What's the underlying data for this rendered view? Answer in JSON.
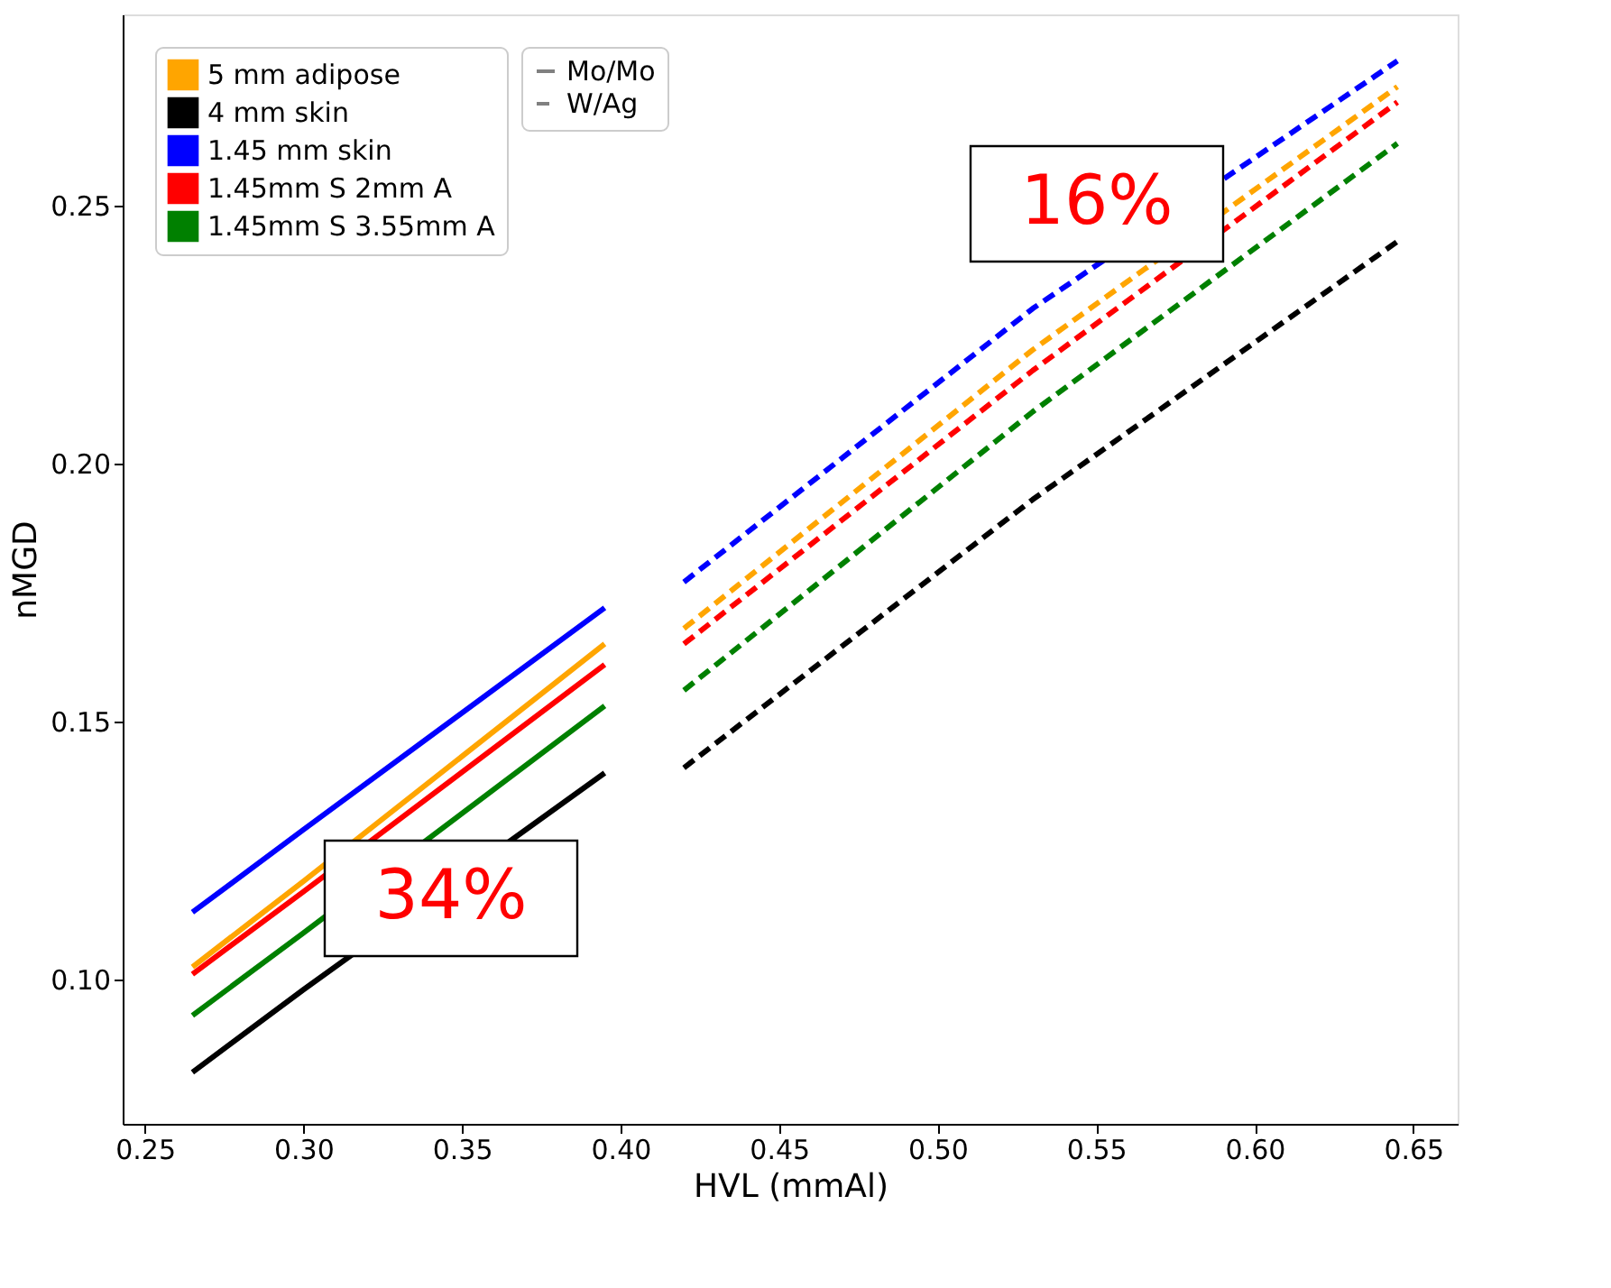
{
  "chart_data": {
    "type": "line",
    "xlabel": "HVL (mmAl)",
    "ylabel": "nMGD",
    "xlim": [
      0.243,
      0.664
    ],
    "ylim": [
      0.072,
      0.287
    ],
    "xticks": [
      0.25,
      {
        "value": 0.3,
        "label": "0.30"
      },
      0.35,
      {
        "value": 0.4,
        "label": "0.40"
      },
      0.45,
      {
        "value": 0.5,
        "label": "0.50"
      },
      0.55,
      {
        "value": 0.6,
        "label": "0.60"
      },
      0.65
    ],
    "yticks": [
      {
        "value": 0.1,
        "label": "0.10"
      },
      0.15,
      {
        "value": 0.2,
        "label": "0.20"
      },
      0.25
    ],
    "grid": false,
    "legend": "top left",
    "series": [
      {
        "name": "5 mm adipose",
        "color": "#ffa500",
        "line_style": "solid",
        "x": [
          0.265,
          0.3,
          0.395
        ],
        "values": [
          0.1024,
          0.119,
          0.165
        ]
      },
      {
        "name": "4 mm skin",
        "color": "#000000",
        "line_style": "solid",
        "x": [
          0.265,
          0.3,
          0.395
        ],
        "values": [
          0.082,
          0.098,
          0.14
        ]
      },
      {
        "name": "1.45 mm skin",
        "color": "#0000ff",
        "line_style": "solid",
        "x": [
          0.265,
          0.3,
          0.395
        ],
        "values": [
          0.113,
          0.129,
          0.172
        ]
      },
      {
        "name": "1.45mm S 2mm A",
        "color": "#ff0000",
        "line_style": "solid",
        "x": [
          0.265,
          0.3,
          0.395
        ],
        "values": [
          0.101,
          0.117,
          0.161
        ]
      },
      {
        "name": "1.45mm S 3.55mm A",
        "color": "#008000",
        "line_style": "solid",
        "x": [
          0.265,
          0.3,
          0.395
        ],
        "values": [
          0.093,
          0.109,
          0.153
        ]
      },
      {
        "color": "#ffa500",
        "line_style": "dashed",
        "x": [
          0.42,
          0.53,
          0.645
        ],
        "values": [
          0.168,
          0.222,
          0.273
        ]
      },
      {
        "color": "#000000",
        "line_style": "dashed",
        "x": [
          0.42,
          0.53,
          0.645
        ],
        "values": [
          0.141,
          0.193,
          0.243
        ]
      },
      {
        "color": "#0000ff",
        "line_style": "dashed",
        "x": [
          0.42,
          0.53,
          0.645
        ],
        "values": [
          0.177,
          0.23,
          0.278
        ]
      },
      {
        "color": "#ff0000",
        "line_style": "dashed",
        "x": [
          0.42,
          0.53,
          0.645
        ],
        "values": [
          0.165,
          0.218,
          0.27
        ]
      },
      {
        "color": "#008000",
        "line_style": "dashed",
        "x": [
          0.42,
          0.53,
          0.645
        ],
        "values": [
          0.156,
          0.21,
          0.262
        ]
      },
      {
        "name": "Mo/Mo",
        "color": "#808080",
        "line_style": "solid"
      },
      {
        "name": "W/Ag",
        "color": "#808080",
        "line_style": "dashed"
      }
    ],
    "annotations": [
      "34%",
      "16%"
    ]
  }
}
